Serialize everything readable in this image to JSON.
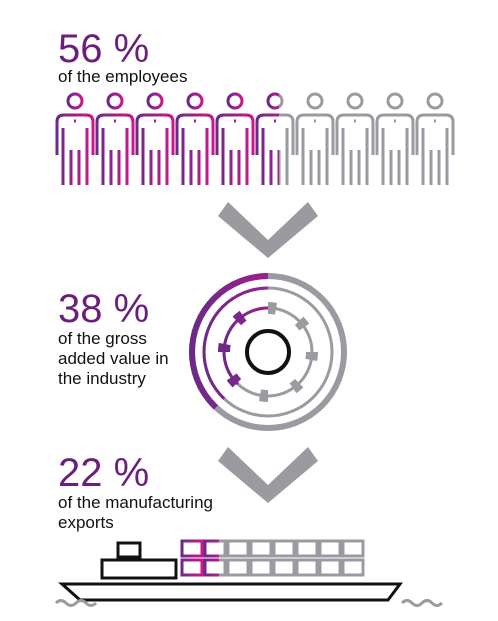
{
  "stats": [
    {
      "value": 56,
      "label": "56 %",
      "text": [
        "of the employees"
      ]
    },
    {
      "value": 38,
      "label": "38 %",
      "text": [
        "of the gross",
        "added value in",
        "the industry"
      ]
    },
    {
      "value": 22,
      "label": "22 %",
      "text": [
        "of the manufacturing",
        "exports"
      ]
    }
  ]
}
